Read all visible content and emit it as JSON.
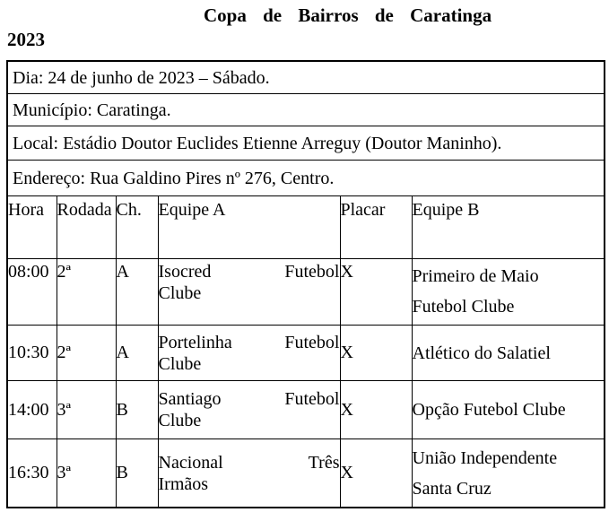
{
  "title": {
    "line1": "Copa de Bairros de Caratinga",
    "line2": "2023"
  },
  "info_rows": [
    "Dia: 24 de junho de 2023 – Sábado.",
    "Município: Caratinga.",
    "Local: Estádio Doutor Euclides Etienne Arreguy (Doutor Maninho).",
    "Endereço: Rua Galdino Pires nº 276, Centro."
  ],
  "schedule": {
    "headers": [
      "Hora",
      "Rodada",
      "Ch.",
      "Equipe A",
      "Placar",
      "Equipe B"
    ],
    "rows": [
      {
        "hora": "08:00",
        "rodada": "2ª",
        "chave": "A",
        "equipe_a_lines": [
          "Isocred Futebol",
          "Clube"
        ],
        "placar": "X",
        "equipe_b_lines": [
          "Primeiro de Maio",
          "Futebol Clube"
        ]
      },
      {
        "hora": "10:30",
        "rodada": "2ª",
        "chave": "A",
        "equipe_a_lines": [
          "Portelinha Futebol",
          "Clube"
        ],
        "placar": "X",
        "equipe_b_lines": [
          "Atlético do Salatiel"
        ]
      },
      {
        "hora": "14:00",
        "rodada": "3ª",
        "chave": "B",
        "equipe_a_lines": [
          "Santiago Futebol",
          "Clube"
        ],
        "placar": "X",
        "equipe_b_lines": [
          "Opção Futebol Clube"
        ]
      },
      {
        "hora": "16:30",
        "rodada": "3ª",
        "chave": "B",
        "equipe_a_lines": [
          "Nacional Três",
          "Irmãos"
        ],
        "placar": "X",
        "equipe_b_lines": [
          "União Independente",
          "Santa Cruz"
        ]
      }
    ]
  },
  "colors": {
    "text": "#000000",
    "border": "#000000",
    "background": "#ffffff"
  }
}
